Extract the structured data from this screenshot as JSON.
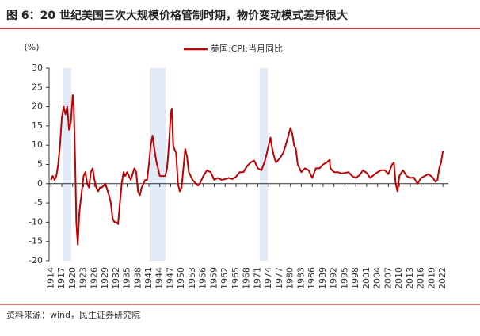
{
  "chart_data": {
    "type": "line",
    "title": "图 6：20 世纪美国三次大规模价格管制时期，物价变动模式差异很大",
    "y_label": "(%)",
    "source": "资料来源：wind，民生证券研究院",
    "series_name": "美国:CPI:当月同比",
    "color": "#c00000",
    "shade_color": "#e3eaf7",
    "shaded_ranges": [
      [
        1917.4,
        1919.6
      ],
      [
        1941.2,
        1945.6
      ],
      [
        1971.5,
        1973.8
      ]
    ],
    "x": [
      1914,
      1914.5,
      1915,
      1915.5,
      1916,
      1916.5,
      1917,
      1917.5,
      1918,
      1918.5,
      1919,
      1919.5,
      1920,
      1920.3,
      1920.7,
      1921,
      1921.4,
      1921.8,
      1922,
      1922.5,
      1923,
      1923.5,
      1924,
      1924.5,
      1925,
      1925.5,
      1926,
      1926.5,
      1927,
      1927.5,
      1928,
      1929,
      1930,
      1930.5,
      1931,
      1931.5,
      1932,
      1932.5,
      1933,
      1933.5,
      1934,
      1934.5,
      1935,
      1936,
      1937,
      1937.5,
      1938,
      1938.5,
      1939,
      1939.5,
      1940,
      1940.5,
      1941,
      1941.5,
      1942,
      1942.5,
      1943,
      1943.5,
      1944,
      1944.5,
      1945,
      1945.5,
      1946,
      1946.5,
      1947,
      1947.3,
      1947.7,
      1948,
      1948.5,
      1949,
      1949.5,
      1950,
      1950.5,
      1951,
      1951.5,
      1952,
      1953,
      1954,
      1954.5,
      1955,
      1956,
      1957,
      1958,
      1959,
      1960,
      1961,
      1962,
      1963,
      1964,
      1965,
      1966,
      1967,
      1968,
      1969,
      1970,
      1971,
      1972,
      1973,
      1973.5,
      1974,
      1974.5,
      1975,
      1975.5,
      1976,
      1977,
      1978,
      1979,
      1980,
      1980.5,
      1981,
      1981.5,
      1982,
      1983,
      1984,
      1985,
      1986,
      1987,
      1988,
      1989,
      1990,
      1990.8,
      1991,
      1992,
      1993,
      1994,
      1995,
      1996,
      1997,
      1998,
      1999,
      2000,
      2001,
      2002,
      2003,
      2004,
      2005,
      2006,
      2007,
      2008,
      2008.5,
      2009,
      2009.5,
      2010,
      2011,
      2012,
      2013,
      2014,
      2015,
      2016,
      2017,
      2018,
      2019,
      2020,
      2020.5,
      2021,
      2021.5,
      2022
    ],
    "values": [
      1,
      2,
      1,
      2,
      5,
      10,
      17,
      20,
      18,
      20,
      14,
      16,
      23,
      20,
      5,
      -10,
      -15.8,
      -8,
      -6,
      -2,
      2,
      3,
      0,
      -1,
      3,
      4,
      1,
      -1,
      -2,
      -1,
      -1,
      0,
      -3,
      -5,
      -9,
      -10,
      -10,
      -10.5,
      -5,
      0,
      3,
      2,
      3,
      1,
      4,
      3,
      -2,
      -3,
      -1,
      0,
      1,
      1,
      5,
      10,
      12.5,
      9,
      6,
      4,
      2,
      2,
      2,
      2,
      4,
      10,
      18,
      19.5,
      10,
      9,
      8,
      0,
      -2,
      -1,
      4,
      9,
      7,
      3,
      1,
      0,
      -0.5,
      0,
      2,
      3.5,
      3,
      1,
      1.5,
      1,
      1.2,
      1.5,
      1.2,
      1.8,
      3,
      3,
      4.5,
      5.5,
      6,
      4,
      3.5,
      6,
      8,
      10,
      12,
      9,
      7,
      5.5,
      6.5,
      8,
      11,
      14.5,
      13,
      10,
      9,
      5,
      3,
      4,
      3.5,
      1.5,
      4,
      4,
      5,
      5.5,
      6.2,
      4,
      3,
      3,
      2.7,
      2.8,
      3,
      2,
      1.5,
      2.2,
      3.5,
      2.8,
      1.5,
      2.3,
      3,
      3.5,
      3.5,
      2.5,
      5,
      5.5,
      0,
      -2,
      2,
      3.5,
      2,
      1.5,
      1.6,
      0,
      1.5,
      2,
      2.5,
      1.8,
      0.5,
      1,
      4,
      5.5,
      8.5
    ],
    "xlim": [
      1913.5,
      2023.5
    ],
    "ylim": [
      -20,
      30
    ],
    "yticks": [
      -20,
      -15,
      -10,
      -5,
      0,
      5,
      10,
      15,
      20,
      25,
      30
    ],
    "xticks": [
      1914,
      1917,
      1920,
      1923,
      1926,
      1929,
      1932,
      1935,
      1938,
      1941,
      1944,
      1947,
      1950,
      1953,
      1956,
      1959,
      1962,
      1965,
      1968,
      1971,
      1974,
      1977,
      1980,
      1983,
      1986,
      1989,
      1992,
      1995,
      1998,
      2001,
      2004,
      2007,
      2010,
      2013,
      2016,
      2019,
      2022
    ]
  }
}
